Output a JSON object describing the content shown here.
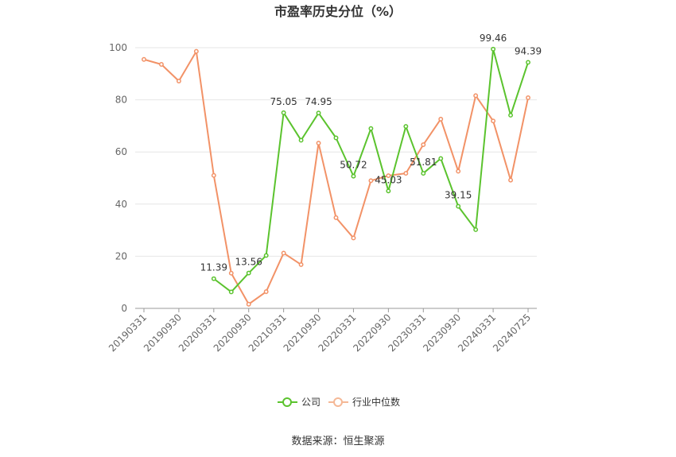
{
  "chart_data": {
    "type": "line",
    "title": "市盈率历史分位（%）",
    "xlabel": "",
    "ylabel": "",
    "ylim": [
      0,
      100
    ],
    "yticks": [
      0,
      20,
      40,
      60,
      80,
      100
    ],
    "categories": [
      "20190331",
      "",
      "20190930",
      "",
      "20200331",
      "",
      "20200930",
      "",
      "20210331",
      "",
      "20210930",
      "",
      "20220331",
      "",
      "20220930",
      "",
      "20230331",
      "",
      "20230930",
      "",
      "20240331",
      "",
      "20240725"
    ],
    "tick_labels": [
      "20190331",
      "20190930",
      "20200331",
      "20200930",
      "20210331",
      "20210930",
      "20220331",
      "20220930",
      "20230331",
      "20230930",
      "20240331",
      "20240725"
    ],
    "series": [
      {
        "name": "公司",
        "color": "#5bc32e",
        "values": [
          null,
          null,
          null,
          null,
          11.39,
          6.3,
          13.56,
          20.3,
          75.05,
          64.5,
          74.95,
          65.4,
          50.72,
          69.0,
          45.03,
          69.8,
          51.81,
          57.5,
          39.15,
          30.2,
          99.46,
          74.1,
          94.39
        ],
        "labels": {
          "4": "11.39",
          "6": "13.56",
          "8": "75.05",
          "10": "74.95",
          "12": "50.72",
          "14": "45.03",
          "16": "51.81",
          "18": "39.15",
          "20": "99.46",
          "22": "94.39"
        }
      },
      {
        "name": "行业中位数",
        "color": "#f29267",
        "values": [
          95.5,
          93.6,
          87.2,
          98.6,
          51.0,
          13.5,
          1.6,
          6.4,
          21.2,
          16.8,
          63.4,
          34.8,
          27.0,
          49.0,
          50.9,
          51.8,
          62.8,
          72.6,
          52.6,
          81.6,
          71.9,
          49.2,
          80.8
        ]
      }
    ],
    "grid": true,
    "legend_position": "bottom-center"
  },
  "source_text": "数据来源：恒生聚源"
}
